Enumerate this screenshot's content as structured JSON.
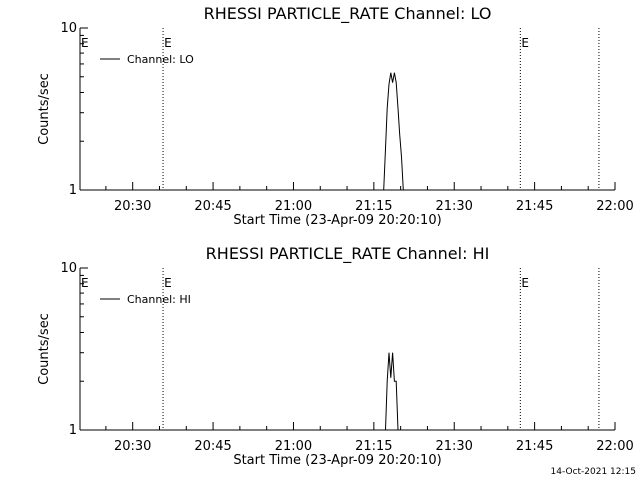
{
  "footer_timestamp": "14-Oct-2021 12:15",
  "chart_data": [
    {
      "type": "line",
      "title": "RHESSI PARTICLE_RATE Channel: LO",
      "xlabel": "Start Time (23-Apr-09 20:20:10)",
      "ylabel": "Counts/sec",
      "yscale": "log",
      "ylim": [
        1,
        10
      ],
      "yticks": [
        {
          "value": 1,
          "label": "1"
        },
        {
          "value": 10,
          "label": "10"
        }
      ],
      "xlim": [
        "20:20:10",
        "22:00:00"
      ],
      "xticks": [
        "20:30",
        "20:45",
        "21:00",
        "21:15",
        "21:30",
        "21:45",
        "22:00"
      ],
      "event_lines": [
        {
          "time": "20:35:40",
          "label": "E"
        },
        {
          "time": "21:42:20",
          "label": "E"
        },
        {
          "time": "21:57:00",
          "label": ""
        }
      ],
      "event_label_left": "E",
      "legend": {
        "label": "Channel: LO",
        "position": "top-left"
      },
      "series": [
        {
          "name": "Channel: LO",
          "points": [
            [
              "21:16:50",
              1.0
            ],
            [
              "21:17:10",
              1.8
            ],
            [
              "21:17:30",
              3.2
            ],
            [
              "21:17:50",
              4.5
            ],
            [
              "21:18:10",
              5.3
            ],
            [
              "21:18:30",
              4.6
            ],
            [
              "21:18:50",
              5.3
            ],
            [
              "21:19:10",
              4.6
            ],
            [
              "21:19:30",
              3.2
            ],
            [
              "21:19:50",
              2.2
            ],
            [
              "21:20:10",
              1.6
            ],
            [
              "21:20:30",
              1.0
            ]
          ]
        }
      ]
    },
    {
      "type": "line",
      "title": "RHESSI PARTICLE_RATE Channel: HI",
      "xlabel": "Start Time (23-Apr-09 20:20:10)",
      "ylabel": "Counts/sec",
      "yscale": "log",
      "ylim": [
        1,
        10
      ],
      "yticks": [
        {
          "value": 1,
          "label": "1"
        },
        {
          "value": 10,
          "label": "10"
        }
      ],
      "xlim": [
        "20:20:10",
        "22:00:00"
      ],
      "xticks": [
        "20:30",
        "20:45",
        "21:00",
        "21:15",
        "21:30",
        "21:45",
        "22:00"
      ],
      "event_lines": [
        {
          "time": "20:35:40",
          "label": "E"
        },
        {
          "time": "21:42:20",
          "label": "E"
        },
        {
          "time": "21:57:00",
          "label": ""
        }
      ],
      "event_label_left": "E",
      "legend": {
        "label": "Channel: HI",
        "position": "top-left"
      },
      "series": [
        {
          "name": "Channel: HI",
          "points": [
            [
              "21:17:10",
              1.0
            ],
            [
              "21:17:30",
              2.0
            ],
            [
              "21:17:50",
              3.0
            ],
            [
              "21:18:10",
              2.1
            ],
            [
              "21:18:30",
              3.0
            ],
            [
              "21:18:50",
              2.0
            ],
            [
              "21:19:10",
              2.0
            ],
            [
              "21:19:30",
              1.0
            ]
          ]
        }
      ]
    }
  ]
}
